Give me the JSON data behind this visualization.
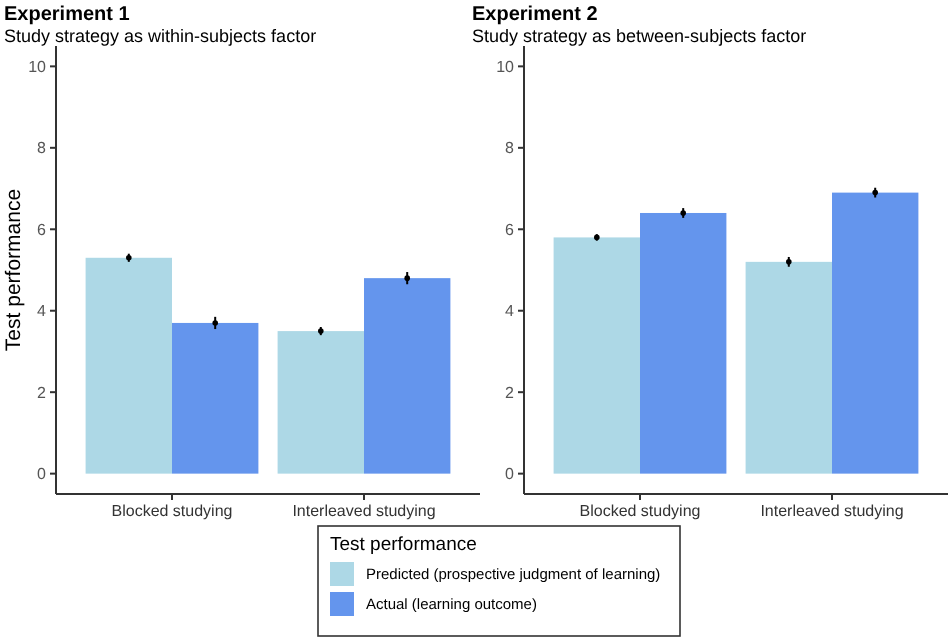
{
  "chart_data": [
    {
      "type": "bar",
      "title": "Experiment 1",
      "subtitle": "Study strategy as within-subjects factor",
      "ylabel": "Test performance",
      "categories": [
        "Blocked studying",
        "Interleaved studying"
      ],
      "ylim": [
        -0.5,
        10.5
      ],
      "yticks": [
        0,
        2,
        4,
        6,
        8,
        10
      ],
      "legend": "bottom",
      "legend_title": "Test performance",
      "grid": false,
      "series": [
        {
          "name": "Predicted (prospective judgment of learning)",
          "color": "#add8e6",
          "values": [
            5.3,
            3.5
          ],
          "errors": [
            0.1,
            0.1
          ]
        },
        {
          "name": "Actual (learning outcome)",
          "color": "#6495ed",
          "values": [
            3.7,
            4.8
          ],
          "errors": [
            0.15,
            0.15
          ]
        }
      ]
    },
    {
      "type": "bar",
      "title": "Experiment 2",
      "subtitle": "Study strategy as between-subjects factor",
      "categories": [
        "Blocked studying",
        "Interleaved studying"
      ],
      "ylim": [
        -0.5,
        10.5
      ],
      "yticks": [
        0,
        2,
        4,
        6,
        8,
        10
      ],
      "grid": false,
      "series": [
        {
          "color": "#add8e6",
          "values": [
            5.8,
            5.2
          ],
          "errors": [
            0.08,
            0.12
          ]
        },
        {
          "color": "#6495ed",
          "values": [
            6.4,
            6.9
          ],
          "errors": [
            0.12,
            0.12
          ]
        }
      ]
    }
  ]
}
